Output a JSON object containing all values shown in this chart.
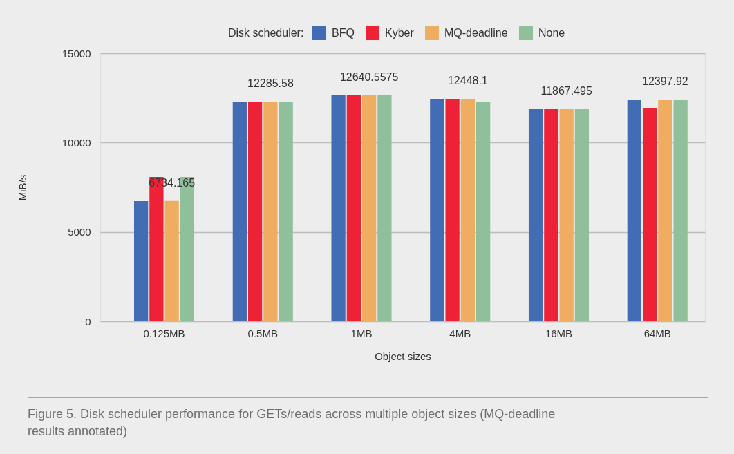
{
  "chart_data": {
    "type": "bar",
    "xlabel": "Object sizes",
    "ylabel": "MiB/s",
    "legend_title": "Disk scheduler:",
    "legend": "top",
    "grid": "y",
    "categories": [
      "0.125MB",
      "0.5MB",
      "1MB",
      "4MB",
      "16MB",
      "64MB"
    ],
    "ylim": [
      0,
      15000
    ],
    "yticks": [
      0,
      5000,
      10000,
      15000
    ],
    "series": [
      {
        "name": "BFQ",
        "color": "#426cb3",
        "values": [
          6730,
          12290,
          12640,
          12450,
          11870,
          12390
        ]
      },
      {
        "name": "Kyber",
        "color": "#ed2236",
        "values": [
          8080,
          12290,
          12640,
          12450,
          11870,
          11920
        ]
      },
      {
        "name": "MQ-deadline",
        "color": "#efad61",
        "values": [
          6734.165,
          12285.58,
          12640.5575,
          12448.1,
          11867.495,
          12397.92
        ],
        "value_labels": [
          "6734.165",
          "12285.58",
          "12640.5575",
          "12448.1",
          "11867.495",
          "12397.92"
        ]
      },
      {
        "name": "None",
        "color": "#90bf9b",
        "values": [
          8080,
          12290,
          12640,
          12270,
          11870,
          12390
        ]
      }
    ],
    "annotations": [
      "Figure 5. Disk scheduler performance for GETs/reads across multiple object sizes (MQ-deadline results annotated)"
    ]
  }
}
